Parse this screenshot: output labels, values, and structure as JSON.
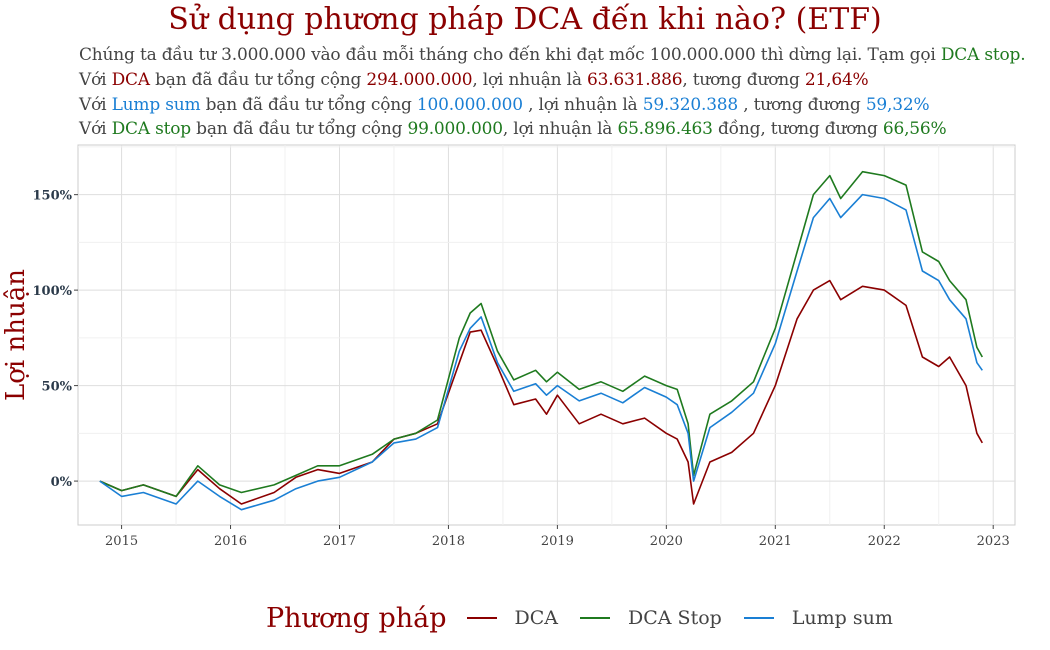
{
  "title": "Sử dụng phương pháp DCA đến khi nào? (ETF)",
  "desc": {
    "line1": {
      "text": "Chúng ta đầu tư 3.000.000 vào đầu mỗi tháng cho đến khi đạt mốc 100.000.000 thì dừng lại. Tạm gọi ",
      "highlight": "DCA stop."
    },
    "line2": {
      "p1": "Với ",
      "name": "DCA",
      "p2": " bạn đã đầu tư tổng cộng ",
      "invested": "294.000.000",
      "p3": ", lợi nhuận là ",
      "profit": "63.631.886",
      "p4": ", tương đương ",
      "pct": "21,64%"
    },
    "line3": {
      "p1": "Với ",
      "name": "Lump sum",
      "p2": " bạn đã đầu tư tổng cộng ",
      "invested": "100.000.000",
      "p3": " , lợi nhuận là ",
      "profit": "59.320.388",
      "p4": " , tương đương ",
      "pct": "59,32%"
    },
    "line4": {
      "p1": "Với ",
      "name": "DCA stop",
      "p2": " bạn đã đầu tư tổng cộng ",
      "invested": "99.000.000",
      "p3": ", lợi nhuận là ",
      "profit": "65.896.463",
      "p4": " đồng, tương đương ",
      "pct": "66,56%"
    }
  },
  "chart_data": {
    "type": "line",
    "ylabel": "Lợi nhuận",
    "xlabel": "",
    "x_ticks": [
      "2015",
      "2016",
      "2017",
      "2018",
      "2019",
      "2020",
      "2021",
      "2022",
      "2023"
    ],
    "y_ticks": [
      "0%",
      "50%",
      "100%",
      "150%"
    ],
    "y_tick_values": [
      0,
      50,
      100,
      150
    ],
    "xlim": [
      2014.6,
      2023.2
    ],
    "ylim": [
      -23,
      176
    ],
    "grid": true,
    "legend_position": "bottom",
    "legend_title": "Phương pháp",
    "colors": {
      "DCA": "#8b0000",
      "DCA Stop": "#1f7a1f",
      "Lump sum": "#1a7fd4"
    },
    "series": [
      {
        "name": "DCA",
        "x": [
          2014.8,
          2015.0,
          2015.2,
          2015.5,
          2015.7,
          2015.9,
          2016.1,
          2016.4,
          2016.6,
          2016.8,
          2017.0,
          2017.3,
          2017.5,
          2017.7,
          2017.9,
          2018.1,
          2018.2,
          2018.3,
          2018.45,
          2018.6,
          2018.8,
          2018.9,
          2019.0,
          2019.2,
          2019.4,
          2019.6,
          2019.8,
          2020.0,
          2020.1,
          2020.2,
          2020.25,
          2020.4,
          2020.6,
          2020.8,
          2021.0,
          2021.2,
          2021.35,
          2021.5,
          2021.6,
          2021.8,
          2022.0,
          2022.2,
          2022.35,
          2022.5,
          2022.6,
          2022.75,
          2022.85,
          2022.9
        ],
        "y": [
          0,
          -5,
          -2,
          -8,
          6,
          -4,
          -12,
          -6,
          2,
          6,
          4,
          10,
          22,
          25,
          30,
          62,
          78,
          79,
          60,
          40,
          43,
          35,
          45,
          30,
          35,
          30,
          33,
          25,
          22,
          10,
          -12,
          10,
          15,
          25,
          50,
          85,
          100,
          105,
          95,
          102,
          100,
          92,
          65,
          60,
          65,
          50,
          25,
          20
        ]
      },
      {
        "name": "DCA Stop",
        "x": [
          2014.8,
          2015.0,
          2015.2,
          2015.5,
          2015.7,
          2015.9,
          2016.1,
          2016.4,
          2016.6,
          2016.8,
          2017.0,
          2017.3,
          2017.5,
          2017.7,
          2017.9,
          2018.1,
          2018.2,
          2018.3,
          2018.45,
          2018.6,
          2018.8,
          2018.9,
          2019.0,
          2019.2,
          2019.4,
          2019.6,
          2019.8,
          2020.0,
          2020.1,
          2020.2,
          2020.25,
          2020.4,
          2020.6,
          2020.8,
          2021.0,
          2021.2,
          2021.35,
          2021.5,
          2021.6,
          2021.8,
          2022.0,
          2022.2,
          2022.35,
          2022.5,
          2022.6,
          2022.75,
          2022.85,
          2022.9
        ],
        "y": [
          0,
          -5,
          -2,
          -8,
          8,
          -2,
          -6,
          -2,
          3,
          8,
          8,
          14,
          22,
          25,
          32,
          75,
          88,
          93,
          68,
          53,
          58,
          52,
          57,
          48,
          52,
          47,
          55,
          50,
          48,
          30,
          3,
          35,
          42,
          52,
          80,
          120,
          150,
          160,
          148,
          162,
          160,
          155,
          120,
          115,
          105,
          95,
          70,
          65
        ]
      },
      {
        "name": "Lump sum",
        "x": [
          2014.8,
          2015.0,
          2015.2,
          2015.5,
          2015.7,
          2015.9,
          2016.1,
          2016.4,
          2016.6,
          2016.8,
          2017.0,
          2017.3,
          2017.5,
          2017.7,
          2017.9,
          2018.1,
          2018.2,
          2018.3,
          2018.45,
          2018.6,
          2018.8,
          2018.9,
          2019.0,
          2019.2,
          2019.4,
          2019.6,
          2019.8,
          2020.0,
          2020.1,
          2020.2,
          2020.25,
          2020.4,
          2020.6,
          2020.8,
          2021.0,
          2021.2,
          2021.35,
          2021.5,
          2021.6,
          2021.8,
          2022.0,
          2022.2,
          2022.35,
          2022.5,
          2022.6,
          2022.75,
          2022.85,
          2022.9
        ],
        "y": [
          0,
          -8,
          -6,
          -12,
          0,
          -8,
          -15,
          -10,
          -4,
          0,
          2,
          10,
          20,
          22,
          28,
          68,
          80,
          86,
          62,
          47,
          51,
          45,
          50,
          42,
          46,
          41,
          49,
          44,
          40,
          25,
          0,
          28,
          36,
          46,
          72,
          110,
          138,
          148,
          138,
          150,
          148,
          142,
          110,
          105,
          95,
          85,
          62,
          58
        ]
      }
    ]
  }
}
